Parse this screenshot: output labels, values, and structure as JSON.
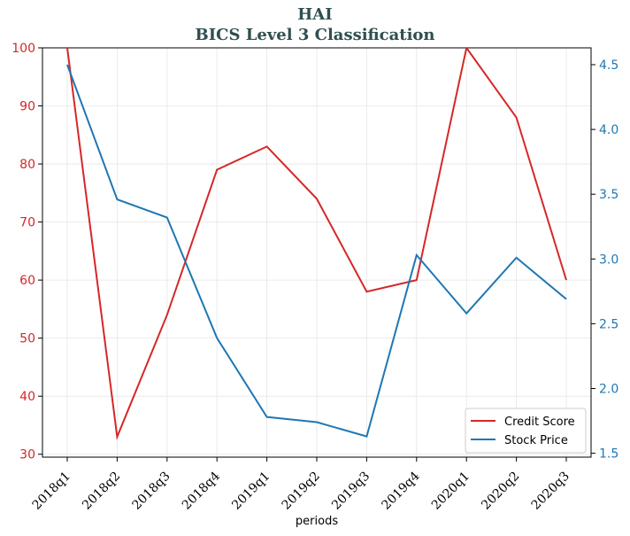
{
  "title": "HAI",
  "subtitle": "BICS Level 3 Classification",
  "colors": {
    "credit": "#d62728",
    "stock": "#1f77b4",
    "title": "#2f4f4f",
    "grid": "#e6e6e6"
  },
  "chart_data": {
    "type": "line",
    "title": "HAI\nBICS Level 3 Classification",
    "xlabel": "periods",
    "categories": [
      "2018q1",
      "2018q2",
      "2018q3",
      "2018q4",
      "2019q1",
      "2019q2",
      "2019q3",
      "2019q4",
      "2020q1",
      "2020q2",
      "2020q3"
    ],
    "y_left": {
      "ylim": [
        29.5,
        100
      ],
      "ticks": [
        30,
        40,
        50,
        60,
        70,
        80,
        90,
        100
      ]
    },
    "y_right": {
      "ylim": [
        1.47,
        4.63
      ],
      "ticks": [
        1.5,
        2.0,
        2.5,
        3.0,
        3.5,
        4.0,
        4.5
      ],
      "tick_labels": [
        "1.5",
        "2.0",
        "2.5",
        "3.0",
        "3.5",
        "4.0",
        "4.5"
      ]
    },
    "grid": true,
    "legend_position": "lower-right",
    "series": [
      {
        "name": "Credit Score",
        "axis": "left",
        "color": "#d62728",
        "values": [
          100,
          33,
          54,
          79,
          83,
          74,
          58,
          60,
          100,
          88,
          60
        ]
      },
      {
        "name": "Stock Price",
        "axis": "right",
        "color": "#1f77b4",
        "values": [
          4.5,
          3.46,
          3.32,
          2.39,
          1.78,
          1.74,
          1.63,
          3.03,
          2.58,
          3.01,
          2.69
        ]
      }
    ]
  }
}
